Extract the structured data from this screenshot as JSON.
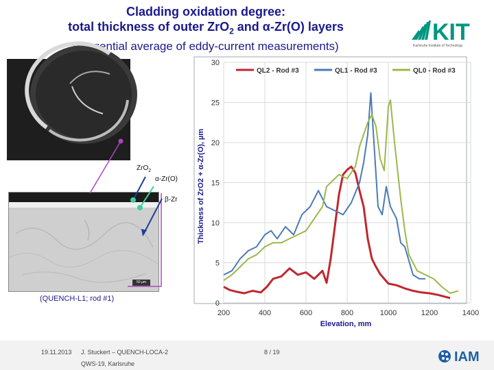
{
  "header": {
    "line1": "Cladding oxidation degree:",
    "line2_prefix": "total thickness of outer ZrO",
    "line2_sub": "2",
    "line2_suffix": " and α-Zr(O) layers",
    "line3": "(tangential average of eddy-current measurements)"
  },
  "logo": {
    "kit_text": "KIT",
    "kit_tagline": "Karlsruhe Institute of Technology",
    "iam_text": "IAM"
  },
  "micrograph": {
    "zro2_label_main": "ZrO",
    "zro2_label_sub": "2",
    "azr_label": "α-Zr(O)",
    "bzr_label": "β-Zr",
    "scale_label": "50 µm",
    "caption": "(QUENCH-L1; rod #1)"
  },
  "footer": {
    "date": "19.11.2013",
    "author": "J. Stuckert – QUENCH-LOCA-2",
    "event": "QWS-19, Karlsruhe",
    "page": "8 / 19"
  },
  "colors": {
    "title": "#1a1a8c",
    "ql2": "#c0272d",
    "ql1": "#4a7ab5",
    "ql0": "#9ab84b",
    "axis_label": "#1a1a8c"
  },
  "chart_data": {
    "type": "line",
    "xlabel": "Elevation, mm",
    "ylabel": "Thickness of ZrO2 + α-Zr(O), µm",
    "xlim": [
      200,
      1400
    ],
    "ylim": [
      0,
      30
    ],
    "xticks": [
      200,
      400,
      600,
      800,
      1000,
      1200,
      1400
    ],
    "yticks": [
      0,
      5,
      10,
      15,
      20,
      25,
      30
    ],
    "legend_position": "top",
    "series": [
      {
        "name": "QL2 - Rod #3",
        "color": "#c0272d",
        "x": [
          200,
          230,
          260,
          300,
          340,
          380,
          410,
          440,
          480,
          520,
          560,
          600,
          640,
          680,
          700,
          720,
          740,
          760,
          780,
          800,
          820,
          840,
          860,
          880,
          900,
          920,
          940,
          960,
          980,
          1000,
          1040,
          1080,
          1120,
          1160,
          1200,
          1240,
          1300
        ],
        "y": [
          2.0,
          1.6,
          1.4,
          1.2,
          1.5,
          1.3,
          2.0,
          3.0,
          3.3,
          4.3,
          3.5,
          3.8,
          3.0,
          4.0,
          2.5,
          5.5,
          9.5,
          13.5,
          16.0,
          16.6,
          17.0,
          16.2,
          14.0,
          12.0,
          8.0,
          5.5,
          4.5,
          3.6,
          3.0,
          2.4,
          2.2,
          1.8,
          1.5,
          1.3,
          1.2,
          1.0,
          0.6
        ]
      },
      {
        "name": "QL1 - Rod #3",
        "color": "#4a7ab5",
        "x": [
          200,
          240,
          280,
          320,
          360,
          400,
          430,
          460,
          500,
          540,
          580,
          620,
          660,
          700,
          740,
          780,
          820,
          860,
          880,
          900,
          915,
          930,
          950,
          970,
          990,
          1010,
          1040,
          1060,
          1080,
          1120,
          1150,
          1180
        ],
        "y": [
          3.5,
          4.0,
          5.5,
          6.5,
          7.0,
          8.5,
          9.0,
          8.0,
          9.5,
          8.5,
          11.0,
          12.0,
          14.0,
          12.0,
          11.5,
          11.0,
          12.5,
          15.0,
          17.5,
          21.0,
          26.2,
          20.0,
          12.0,
          11.0,
          14.5,
          12.0,
          10.5,
          7.5,
          7.0,
          3.5,
          3.0,
          3.0
        ]
      },
      {
        "name": "QL0 - Rod #3",
        "color": "#9ab84b",
        "x": [
          200,
          240,
          280,
          320,
          360,
          400,
          440,
          480,
          520,
          560,
          600,
          640,
          680,
          700,
          720,
          760,
          800,
          840,
          860,
          880,
          900,
          920,
          940,
          960,
          980,
          1000,
          1010,
          1030,
          1060,
          1080,
          1100,
          1140,
          1180,
          1220,
          1260,
          1300,
          1340
        ],
        "y": [
          2.8,
          3.5,
          4.5,
          5.5,
          6.0,
          7.0,
          7.5,
          7.5,
          8.0,
          8.5,
          9.0,
          10.5,
          12.0,
          14.5,
          15.0,
          16.0,
          15.5,
          17.0,
          19.5,
          21.0,
          22.5,
          23.5,
          22.0,
          18.0,
          16.5,
          24.5,
          25.3,
          20.0,
          13.0,
          9.0,
          6.0,
          4.0,
          3.5,
          3.0,
          2.0,
          1.2,
          1.5
        ]
      }
    ]
  }
}
